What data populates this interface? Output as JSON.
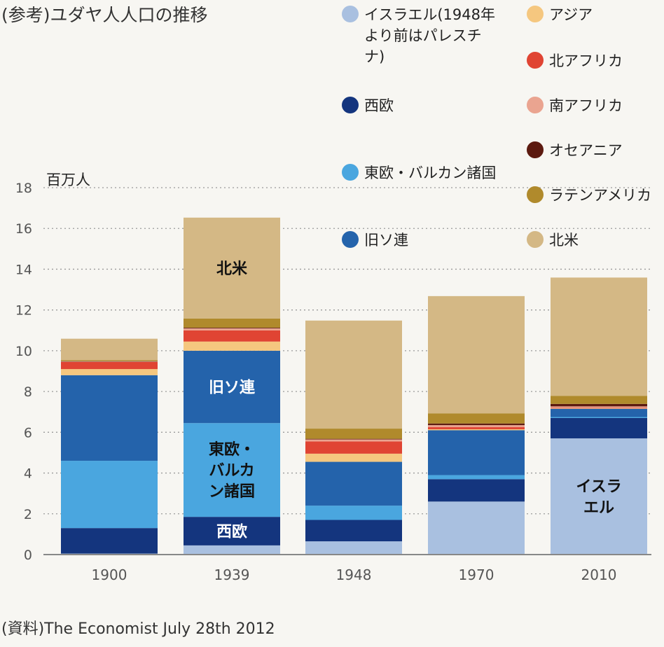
{
  "title": "(参考)ユダヤ人人口の推移",
  "source": "(資料)The Economist July 28th 2012",
  "chart_data": {
    "type": "bar",
    "stacked": true,
    "title": "(参考)ユダヤ人人口の推移",
    "ylabel": "百万人",
    "ylim": [
      0,
      18
    ],
    "yticks": [
      0,
      2,
      4,
      6,
      8,
      10,
      12,
      14,
      16,
      18
    ],
    "grid": true,
    "categories": [
      "1900",
      "1939",
      "1948",
      "1970",
      "2010"
    ],
    "series": [
      {
        "name": "イスラエル(1948年より前はパレスチナ)",
        "color": "#a9c0e0",
        "values": [
          0.05,
          0.45,
          0.65,
          2.6,
          5.7
        ]
      },
      {
        "name": "西欧",
        "color": "#14357e",
        "values": [
          1.25,
          1.4,
          1.05,
          1.1,
          1.0
        ]
      },
      {
        "name": "東欧・バルカン諸国",
        "color": "#4aa6df",
        "values": [
          3.3,
          4.6,
          0.7,
          0.2,
          0.05
        ]
      },
      {
        "name": "旧ソ連",
        "color": "#2463ab",
        "values": [
          4.2,
          3.55,
          2.15,
          2.2,
          0.4
        ]
      },
      {
        "name": "アジア",
        "color": "#f5c77f",
        "values": [
          0.3,
          0.45,
          0.4,
          0.05,
          0.02
        ]
      },
      {
        "name": "北アフリカ",
        "color": "#e04433",
        "values": [
          0.35,
          0.55,
          0.6,
          0.1,
          0.03
        ]
      },
      {
        "name": "南アフリカ",
        "color": "#eaa490",
        "values": [
          0.02,
          0.1,
          0.1,
          0.1,
          0.07
        ]
      },
      {
        "name": "オセアニア",
        "color": "#5c1a10",
        "values": [
          0.02,
          0.03,
          0.03,
          0.08,
          0.12
        ]
      },
      {
        "name": "ラテンアメリカ",
        "color": "#b08a2c",
        "values": [
          0.05,
          0.45,
          0.5,
          0.5,
          0.4
        ]
      },
      {
        "name": "北米",
        "color": "#d4b885",
        "values": [
          1.05,
          4.95,
          5.3,
          5.75,
          5.8
        ]
      }
    ],
    "segment_labels": [
      {
        "category": "1939",
        "series": "北米",
        "lines": [
          "北米"
        ],
        "color": "#111111"
      },
      {
        "category": "1939",
        "series": "旧ソ連",
        "lines": [
          "旧ソ連"
        ],
        "color": "#ffffff"
      },
      {
        "category": "1939",
        "series": "東欧・バルカン諸国",
        "lines": [
          "東欧・",
          "バルカ",
          "ン諸国"
        ],
        "color": "#111111"
      },
      {
        "category": "1939",
        "series": "西欧",
        "lines": [
          "西欧"
        ],
        "color": "#ffffff"
      },
      {
        "category": "2010",
        "series": "イスラエル(1948年より前はパレスチナ)",
        "lines": [
          "イスラ",
          "エル"
        ],
        "color": "#111111"
      }
    ]
  },
  "legend": {
    "columns": [
      [
        {
          "label": "イスラエル(1948年より前はパレスチナ)",
          "lines": [
            "イスラエル(1948年",
            "より前はパレスチ",
            "ナ)"
          ],
          "color": "#a9c0e0"
        },
        {
          "label": "西欧",
          "lines": [
            "西欧"
          ],
          "color": "#14357e"
        },
        {
          "label": "東欧・バルカン諸国",
          "lines": [
            "東欧・バルカン諸国"
          ],
          "color": "#4aa6df"
        },
        {
          "label": "旧ソ連",
          "lines": [
            "旧ソ連"
          ],
          "color": "#2463ab"
        }
      ],
      [
        {
          "label": "アジア",
          "lines": [
            "アジア"
          ],
          "color": "#f5c77f"
        },
        {
          "label": "北アフリカ",
          "lines": [
            "北アフリカ"
          ],
          "color": "#e04433"
        },
        {
          "label": "南アフリカ",
          "lines": [
            "南アフリカ"
          ],
          "color": "#eaa490"
        },
        {
          "label": "オセアニア",
          "lines": [
            "オセアニア"
          ],
          "color": "#5c1a10"
        },
        {
          "label": "ラテンアメリカ",
          "lines": [
            "ラテンアメリカ"
          ],
          "color": "#b08a2c"
        },
        {
          "label": "北米",
          "lines": [
            "北米"
          ],
          "color": "#d4b885"
        }
      ]
    ]
  }
}
